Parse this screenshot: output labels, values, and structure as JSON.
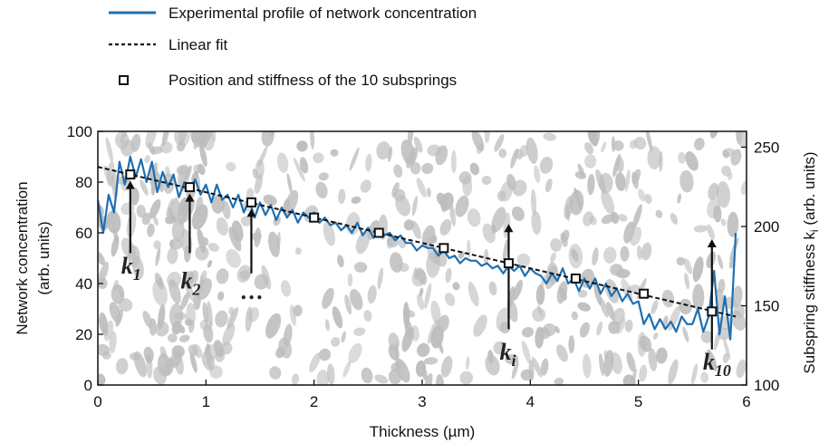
{
  "legend": {
    "profile_label": "Experimental profile of network concentration",
    "fit_label": "Linear fit",
    "springs_label": "Position and stiffness of the 10 subsprings"
  },
  "colors": {
    "profile": "#1f6fb2",
    "fit": "#111111",
    "marker_edge": "#111111",
    "background_blobs": "#bdbdbd"
  },
  "chart_data": {
    "type": "line",
    "xlabel": "Thickness (µm)",
    "ylabel_left": "Network concentration",
    "ylabel_left_units": "(arb. units)",
    "ylabel_right": "Subspring stiffness k",
    "ylabel_right_sub": "i",
    "ylabel_right_units": " (arb. units)",
    "xlim": [
      0,
      6
    ],
    "ylim_left": [
      0,
      100
    ],
    "ylim_right": [
      100,
      260
    ],
    "x_ticks": [
      "0",
      "1",
      "2",
      "3",
      "4",
      "5",
      "6"
    ],
    "y_ticks_left": [
      "0",
      "20",
      "40",
      "60",
      "80",
      "100"
    ],
    "y_ticks_right": [
      "100",
      "150",
      "200",
      "250"
    ],
    "grid": false,
    "legend_position": "top-left, outside plot",
    "series": [
      {
        "name": "Experimental profile of network concentration",
        "x": [
          0.0,
          0.05,
          0.1,
          0.15,
          0.2,
          0.25,
          0.3,
          0.35,
          0.4,
          0.45,
          0.5,
          0.55,
          0.6,
          0.65,
          0.7,
          0.75,
          0.8,
          0.85,
          0.9,
          0.95,
          1.0,
          1.05,
          1.1,
          1.15,
          1.2,
          1.25,
          1.3,
          1.35,
          1.4,
          1.45,
          1.5,
          1.55,
          1.6,
          1.65,
          1.7,
          1.75,
          1.8,
          1.85,
          1.9,
          1.95,
          2.0,
          2.05,
          2.1,
          2.15,
          2.2,
          2.25,
          2.3,
          2.35,
          2.4,
          2.45,
          2.5,
          2.55,
          2.6,
          2.65,
          2.7,
          2.75,
          2.8,
          2.85,
          2.9,
          2.95,
          3.0,
          3.05,
          3.1,
          3.15,
          3.2,
          3.25,
          3.3,
          3.35,
          3.4,
          3.45,
          3.5,
          3.55,
          3.6,
          3.65,
          3.7,
          3.75,
          3.8,
          3.85,
          3.9,
          3.95,
          4.0,
          4.05,
          4.1,
          4.15,
          4.2,
          4.25,
          4.3,
          4.35,
          4.4,
          4.45,
          4.5,
          4.55,
          4.6,
          4.65,
          4.7,
          4.75,
          4.8,
          4.85,
          4.9,
          4.95,
          5.0,
          5.05,
          5.1,
          5.15,
          5.2,
          5.25,
          5.3,
          5.35,
          5.4,
          5.45,
          5.5,
          5.55,
          5.6,
          5.65,
          5.7,
          5.75,
          5.8,
          5.85,
          5.9
        ],
        "y": [
          73,
          60,
          75,
          68,
          88,
          79,
          90,
          82,
          89,
          80,
          88,
          76,
          84,
          78,
          83,
          74,
          80,
          77,
          81,
          75,
          79,
          72,
          79,
          73,
          75,
          70,
          75,
          68,
          73,
          66,
          72,
          67,
          71,
          65,
          70,
          66,
          69,
          64,
          68,
          66,
          68,
          64,
          66,
          63,
          64,
          61,
          63,
          60,
          64,
          59,
          62,
          58,
          61,
          59,
          60,
          57,
          59,
          56,
          56,
          53,
          55,
          54,
          54,
          51,
          53,
          50,
          51,
          48,
          50,
          49,
          49,
          47,
          48,
          46,
          47,
          44,
          47,
          45,
          47,
          43,
          46,
          44,
          43,
          40,
          44,
          41,
          46,
          40,
          42,
          37,
          42,
          38,
          42,
          36,
          40,
          35,
          38,
          33,
          36,
          32,
          33,
          24,
          28,
          22,
          26,
          22,
          25,
          21,
          27,
          24,
          24,
          30,
          21,
          27,
          45,
          20,
          35,
          18,
          60
        ]
      },
      {
        "name": "Linear fit",
        "x": [
          0,
          5.9
        ],
        "y": [
          86,
          27
        ]
      },
      {
        "name": "Position and stiffness of the 10 subsprings",
        "x": [
          0.3,
          0.85,
          1.42,
          2.0,
          2.6,
          3.2,
          3.8,
          4.42,
          5.05,
          5.68
        ],
        "y": [
          83,
          78,
          72,
          66,
          60,
          54,
          48,
          42,
          36,
          29
        ]
      }
    ],
    "annotations": [
      {
        "label": "k",
        "sub": "1",
        "x": 0.3
      },
      {
        "label": "k",
        "sub": "2",
        "x": 0.85
      },
      {
        "label": "…",
        "sub": "",
        "x": 1.42
      },
      {
        "label": "k",
        "sub": "i",
        "x": 3.8
      },
      {
        "label": "k",
        "sub": "10",
        "x": 5.68
      }
    ]
  }
}
